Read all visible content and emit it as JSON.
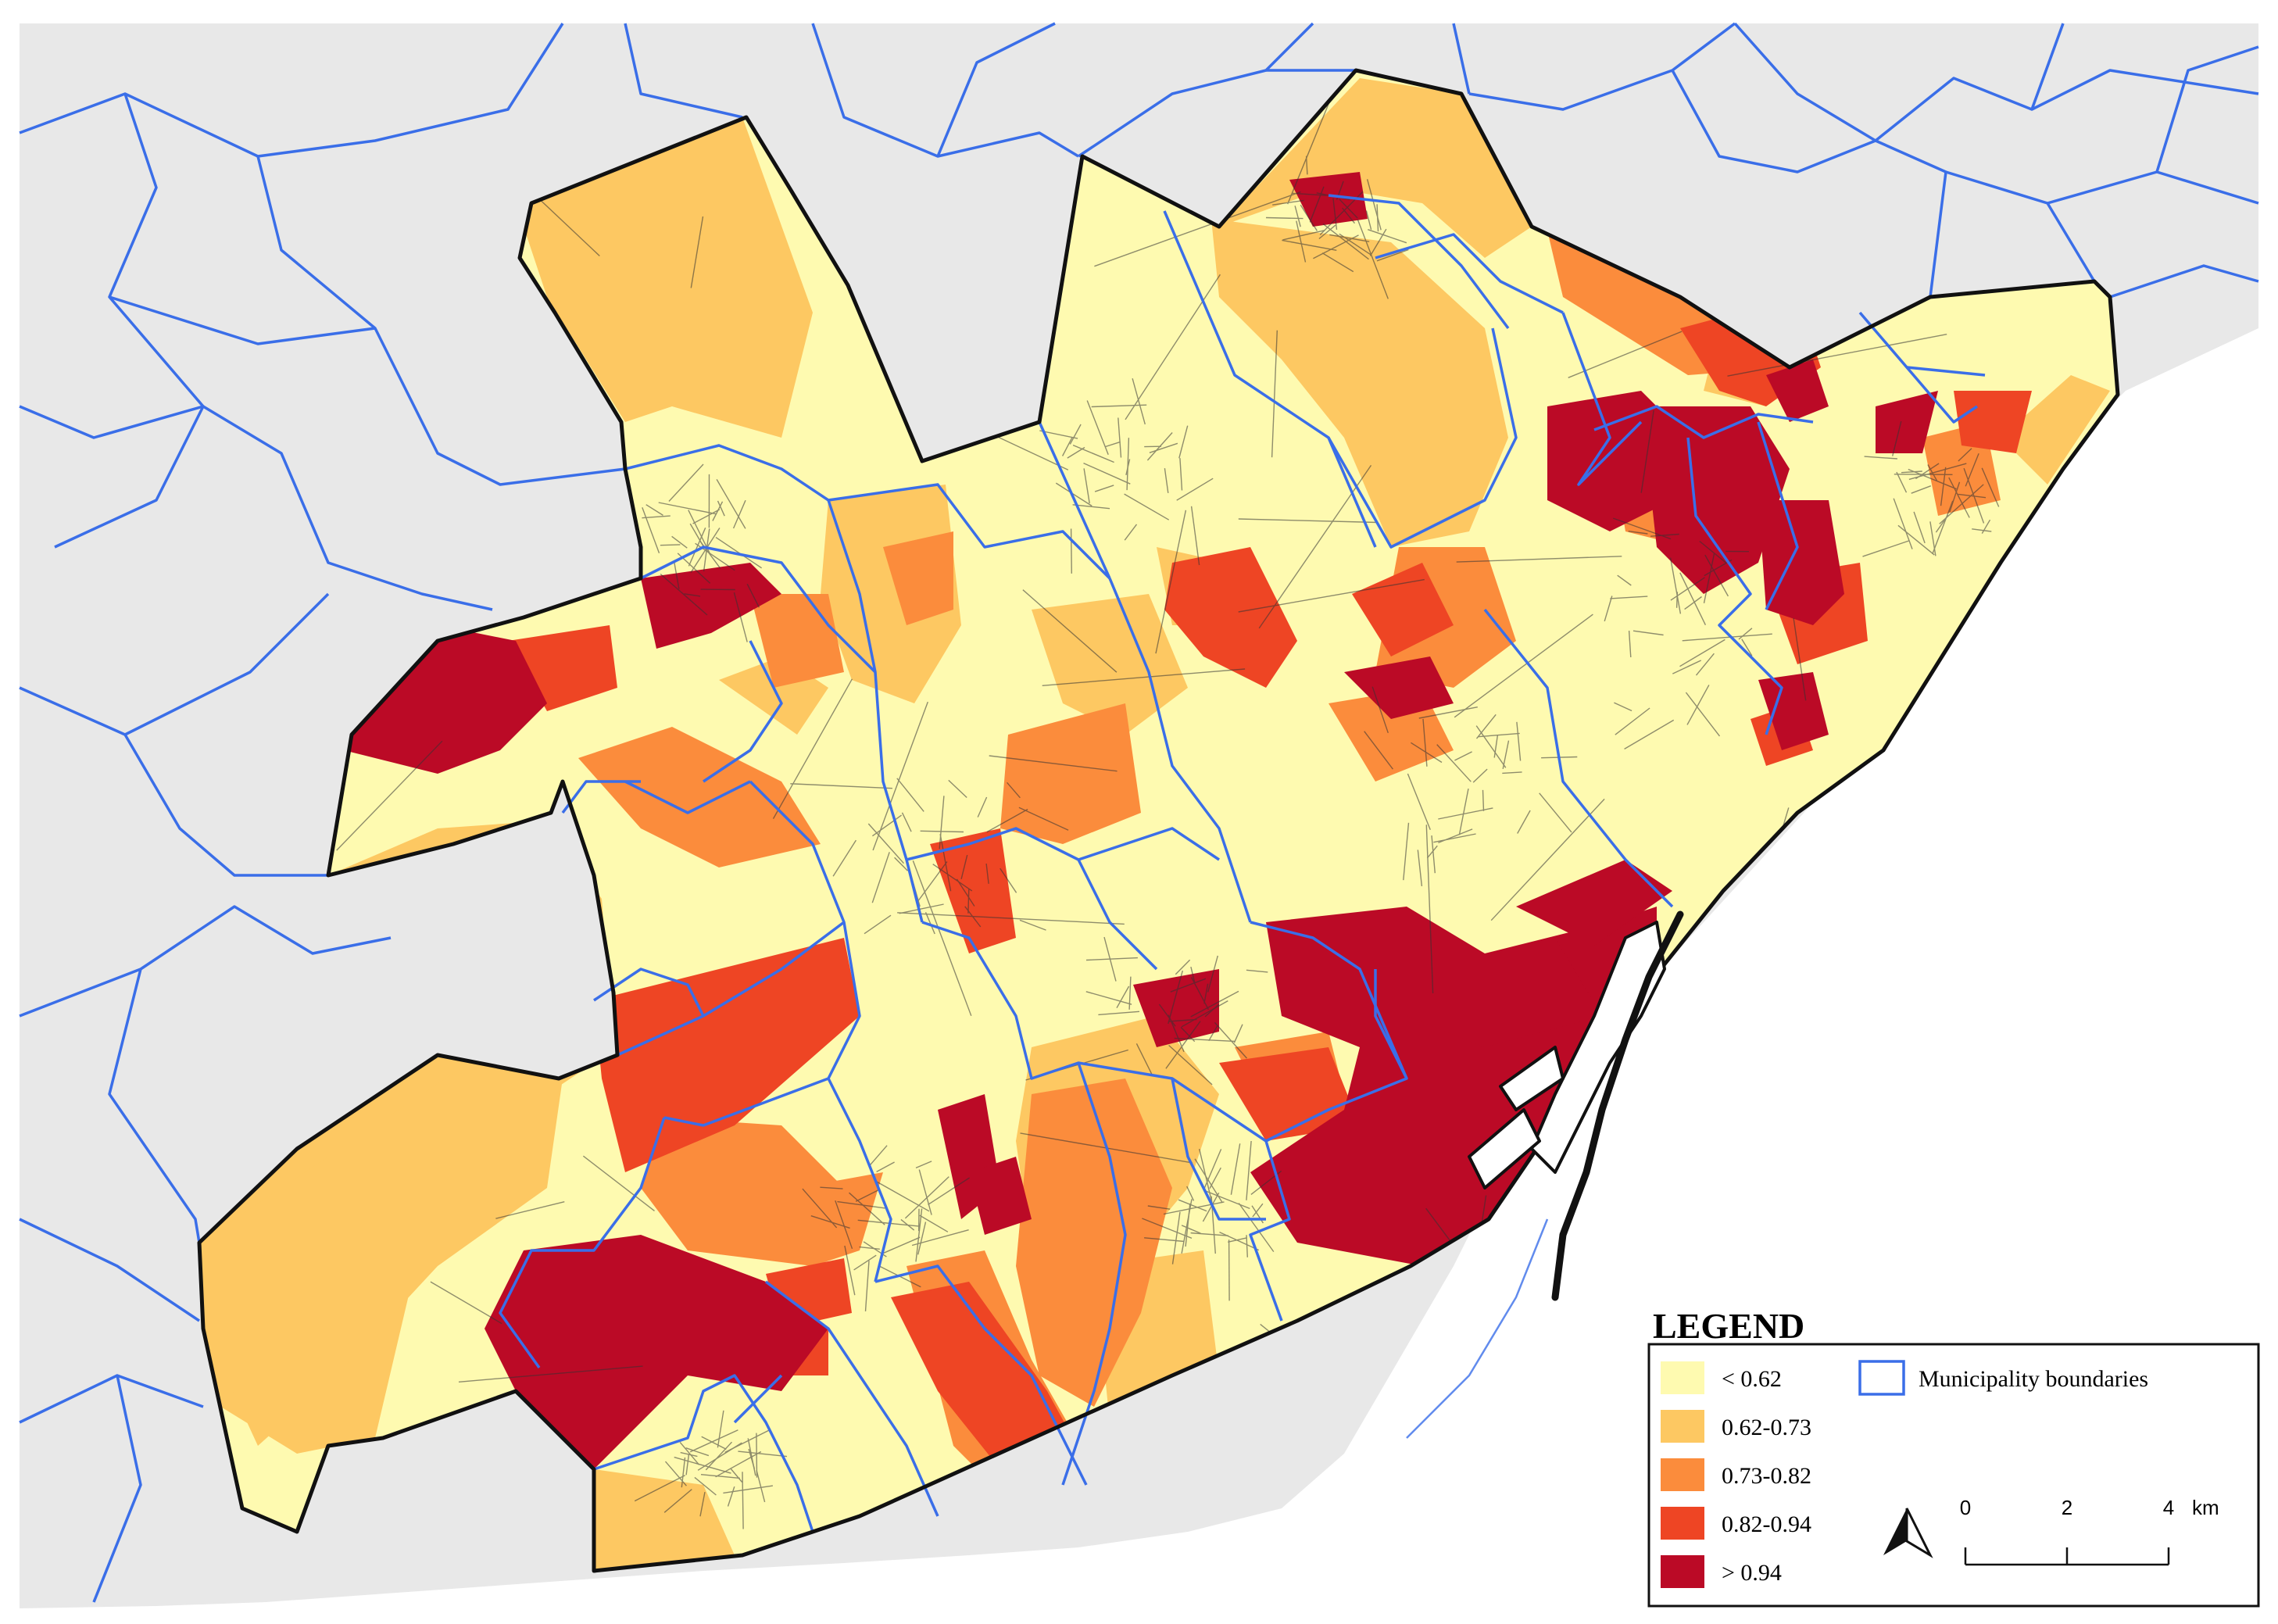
{
  "colors": {
    "background": "#ffffff",
    "outside_land": "#e8e8e8",
    "boundary_blue": "#3a6ee8",
    "outline": "#111111",
    "c1": "#fefab0",
    "c2": "#fdc862",
    "c3": "#fb8c3c",
    "c4": "#ee4524",
    "c5": "#bb0a26"
  },
  "legend": {
    "title": "LEGEND",
    "classes": [
      {
        "label": "< 0.62",
        "color": "#fefab0"
      },
      {
        "label": "0.62-0.73",
        "color": "#fdc862"
      },
      {
        "label": "0.73-0.82",
        "color": "#fb8c3c"
      },
      {
        "label": "0.82-0.94",
        "color": "#ee4524"
      },
      {
        "label": "> 0.94",
        "color": "#bb0a26"
      }
    ],
    "boundary_label": "Municipality boundaries"
  },
  "scalebar": {
    "ticks": [
      "0",
      "2",
      "4"
    ],
    "unit": "km"
  },
  "north_arrow": {
    "icon": "north-arrow-icon"
  }
}
